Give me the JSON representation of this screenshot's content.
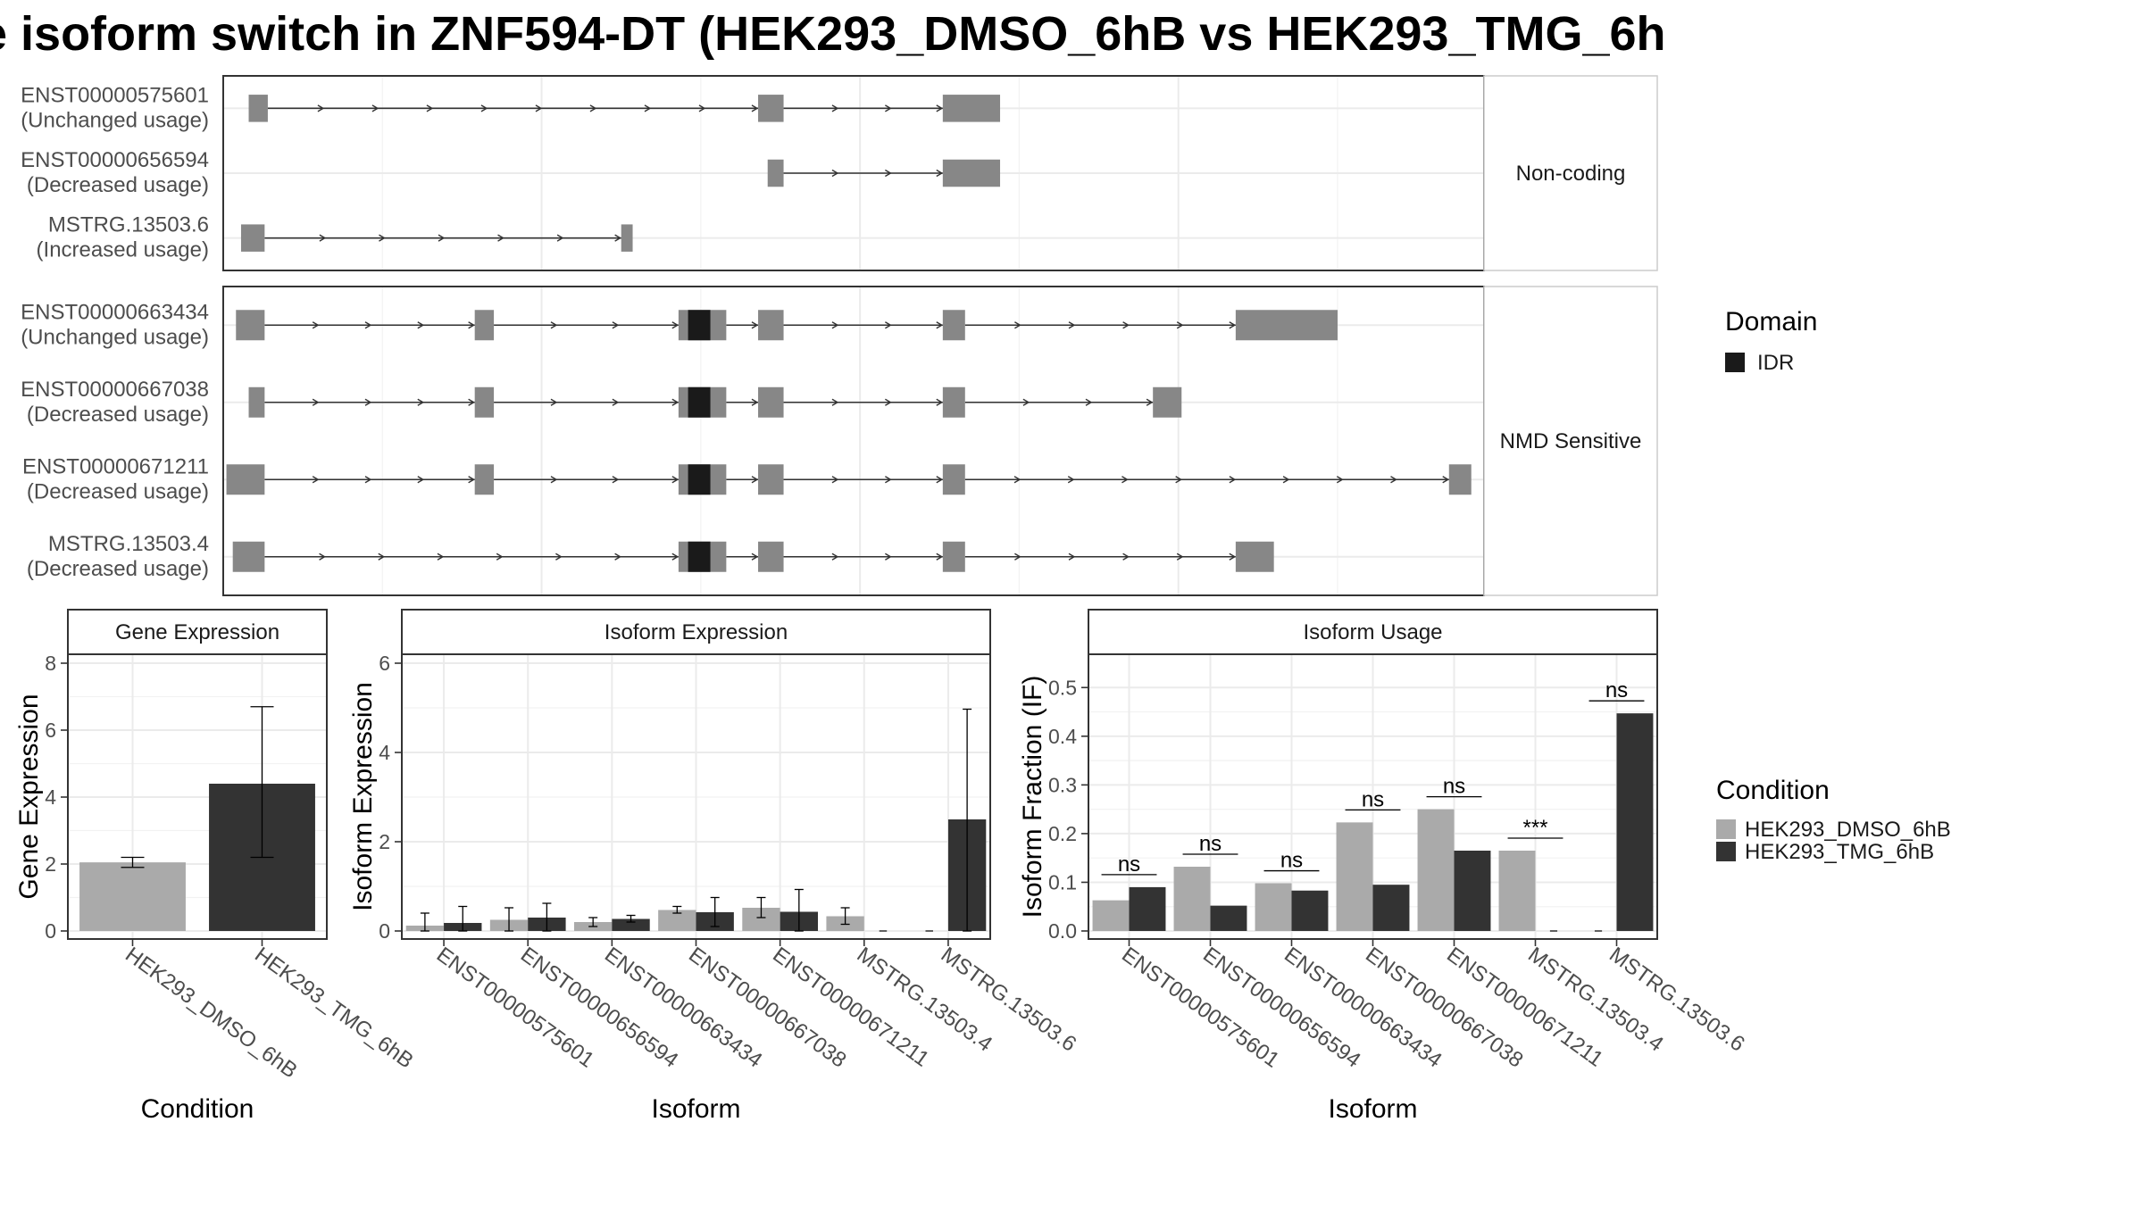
{
  "title": "e isoform switch in ZNF594-DT (HEK293_DMSO_6hB vs HEK293_TMG_6h",
  "colors": {
    "exon": "#878787",
    "idr": "#1a1a1a",
    "dmso": "#aaaaaa",
    "tmg": "#333333",
    "grid": "#ebebeb",
    "panel_border": "#333333",
    "strip_border": "#cccccc"
  },
  "structure": {
    "facets": [
      {
        "label": "Non-coding",
        "tracks": [
          {
            "id": "ENST00000575601",
            "usage": "(Unchanged usage)",
            "exons": [
              [
                4,
                7
              ],
              [
                84,
                88
              ],
              [
                113,
                122
              ]
            ],
            "intron_dir": "forward",
            "domains": []
          },
          {
            "id": "ENST00000656594",
            "usage": "(Decreased usage)",
            "exons": [
              [
                85.5,
                88
              ],
              [
                113,
                122
              ]
            ],
            "intron_dir": "forward",
            "domains": []
          },
          {
            "id": "MSTRG.13503.6",
            "usage": "(Increased usage)",
            "exons": [
              [
                2.8,
                6.5
              ],
              [
                62.5,
                64.3
              ]
            ],
            "intron_dir": "forward",
            "domains": []
          }
        ]
      },
      {
        "label": "NMD Sensitive",
        "tracks": [
          {
            "id": "ENST00000663434",
            "usage": "(Unchanged usage)",
            "exons": [
              [
                2,
                6.5
              ],
              [
                39.5,
                42.5
              ],
              [
                71.5,
                79
              ],
              [
                84,
                88
              ],
              [
                113,
                116.5
              ],
              [
                159,
                175
              ]
            ],
            "intron_dir": "forward",
            "domains": [
              [
                73,
                76.5
              ]
            ]
          },
          {
            "id": "ENST00000667038",
            "usage": "(Decreased usage)",
            "exons": [
              [
                4,
                6.5
              ],
              [
                39.5,
                42.5
              ],
              [
                71.5,
                79
              ],
              [
                84,
                88
              ],
              [
                113,
                116.5
              ],
              [
                146,
                150.5
              ]
            ],
            "intron_dir": "forward",
            "domains": [
              [
                73,
                76.5
              ]
            ]
          },
          {
            "id": "ENST00000671211",
            "usage": "(Decreased usage)",
            "exons": [
              [
                0.5,
                6.5
              ],
              [
                39.5,
                42.5
              ],
              [
                71.5,
                79
              ],
              [
                84,
                88
              ],
              [
                113,
                116.5
              ],
              [
                192.5,
                196
              ]
            ],
            "intron_dir": "forward",
            "domains": [
              [
                73,
                76.5
              ]
            ]
          },
          {
            "id": "MSTRG.13503.4",
            "usage": "(Decreased usage)",
            "exons": [
              [
                1.5,
                6.5
              ],
              [
                71.5,
                79
              ],
              [
                84,
                88
              ],
              [
                113,
                116.5
              ],
              [
                159,
                165
              ]
            ],
            "intron_dir": "forward",
            "domains": [
              [
                73,
                76.5
              ]
            ]
          }
        ]
      }
    ],
    "legend": {
      "title": "Domain",
      "entries": [
        "IDR"
      ]
    }
  },
  "condition_legend": {
    "title": "Condition",
    "entries": [
      "HEK293_DMSO_6hB",
      "HEK293_TMG_6hB"
    ]
  },
  "chart_data": [
    {
      "type": "bar",
      "title": "Gene Expression",
      "xlabel": "Condition",
      "ylabel": "Gene Expression",
      "ylim": [
        0,
        8
      ],
      "yticks": [
        0,
        2,
        4,
        6,
        8
      ],
      "categories": [
        "HEK293_DMSO_6hB",
        "HEK293_TMG_6hB"
      ],
      "values": [
        2.05,
        4.4
      ],
      "errors": [
        [
          1.9,
          2.2
        ],
        [
          2.2,
          6.7
        ]
      ],
      "grid": true
    },
    {
      "type": "bar",
      "title": "Isoform Expression",
      "xlabel": "Isoform",
      "ylabel": "Isoform Expression",
      "ylim": [
        0,
        6
      ],
      "yticks": [
        0,
        2,
        4,
        6
      ],
      "categories": [
        "ENST00000575601",
        "ENST00000656594",
        "ENST00000663434",
        "ENST00000667038",
        "ENST00000671211",
        "MSTRG.13503.4",
        "MSTRG.13503.6"
      ],
      "series": [
        {
          "name": "HEK293_DMSO_6hB",
          "values": [
            0.12,
            0.25,
            0.2,
            0.47,
            0.52,
            0.33,
            0.0
          ],
          "errors": [
            [
              0.0,
              0.4
            ],
            [
              0.0,
              0.52
            ],
            [
              0.1,
              0.3
            ],
            [
              0.4,
              0.55
            ],
            [
              0.3,
              0.75
            ],
            [
              0.15,
              0.52
            ],
            [
              0.0,
              0.0
            ]
          ]
        },
        {
          "name": "HEK293_TMG_6hB",
          "values": [
            0.18,
            0.3,
            0.27,
            0.42,
            0.43,
            0.0,
            2.5
          ],
          "errors": [
            [
              0.0,
              0.55
            ],
            [
              0.0,
              0.62
            ],
            [
              0.2,
              0.35
            ],
            [
              0.1,
              0.75
            ],
            [
              0.0,
              0.93
            ],
            [
              0.0,
              0.0
            ],
            [
              0.0,
              4.97
            ]
          ]
        }
      ],
      "grid": true
    },
    {
      "type": "bar",
      "title": "Isoform Usage",
      "xlabel": "Isoform",
      "ylabel": "Isoform Fraction (IF)",
      "ylim": [
        0,
        0.55
      ],
      "yticks": [
        0.0,
        0.1,
        0.2,
        0.3,
        0.4,
        0.5
      ],
      "categories": [
        "ENST00000575601",
        "ENST00000656594",
        "ENST00000663434",
        "ENST00000667038",
        "ENST00000671211",
        "MSTRG.13503.4",
        "MSTRG.13503.6"
      ],
      "series": [
        {
          "name": "HEK293_DMSO_6hB",
          "values": [
            0.063,
            0.132,
            0.098,
            0.223,
            0.25,
            0.165,
            0.0
          ]
        },
        {
          "name": "HEK293_TMG_6hB",
          "values": [
            0.09,
            0.052,
            0.083,
            0.095,
            0.165,
            0.0,
            0.447
          ]
        }
      ],
      "significance": [
        "ns",
        "ns",
        "ns",
        "ns",
        "ns",
        "***",
        "ns"
      ],
      "grid": true
    }
  ]
}
